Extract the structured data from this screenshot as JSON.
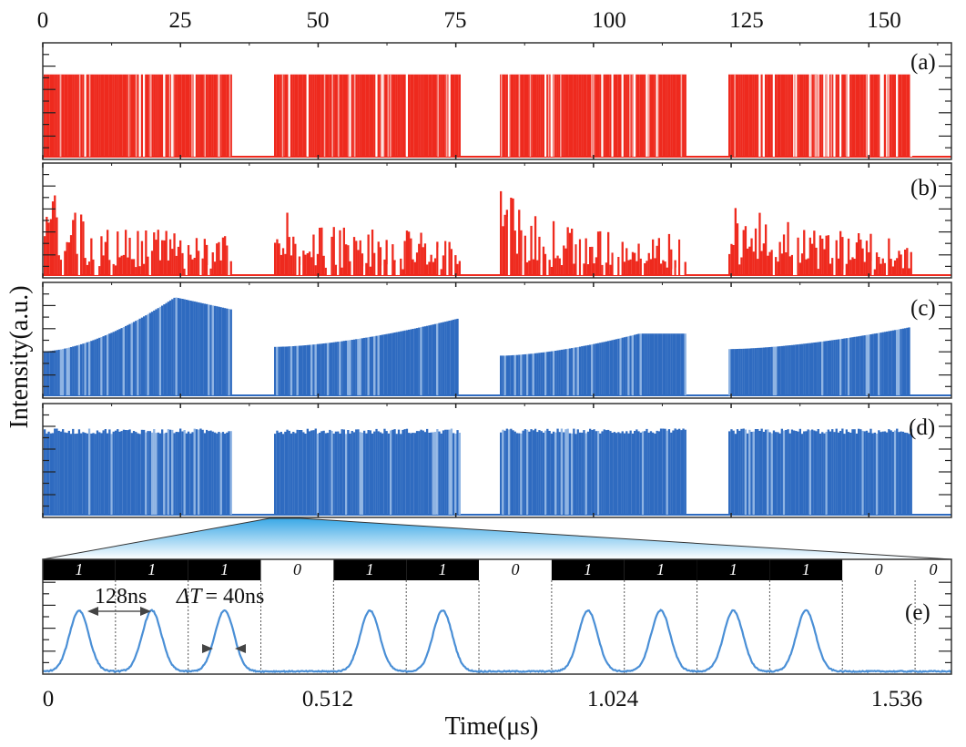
{
  "chart_data": [
    {
      "type": "bar",
      "panel": "(a)",
      "title": "",
      "xlabel": "",
      "ylabel": "Intensity(a.u.)",
      "x_axis_position": "top",
      "xlim": [
        0,
        165
      ],
      "xticks": [
        0,
        25,
        50,
        75,
        100,
        125,
        150
      ],
      "xtick_labels": [
        "0",
        "25",
        "50",
        "75",
        "100",
        "125",
        "150"
      ],
      "ylim": [
        0,
        1
      ],
      "color": "#ee2a1e",
      "bursts": [
        [
          0,
          34
        ],
        [
          42,
          75.5
        ],
        [
          83,
          116.5
        ],
        [
          124.5,
          157.5
        ]
      ],
      "envelope": "flat",
      "level": 0.74,
      "description": "dense red pulse trains of equal amplitude in four bursts"
    },
    {
      "type": "bar",
      "panel": "(b)",
      "xlim": [
        0,
        165
      ],
      "ylim": [
        0,
        1
      ],
      "color": "#ee2a1e",
      "bursts": [
        [
          0,
          34
        ],
        [
          42,
          75.5
        ],
        [
          83,
          116.5
        ],
        [
          124.5,
          157.5
        ]
      ],
      "envelope": "decaying",
      "start_level": 0.78,
      "end_level": 0.36,
      "description": "red pulse trains with fluctuating, decaying amplitude"
    },
    {
      "type": "bar",
      "panel": "(c)",
      "xlim": [
        0,
        165
      ],
      "ylim": [
        0,
        1
      ],
      "color": "#2f6bc0",
      "bursts": [
        [
          0,
          34
        ],
        [
          42,
          75.5
        ],
        [
          83,
          116.5
        ],
        [
          124.5,
          157.5
        ]
      ],
      "burst_envelopes": [
        {
          "start": 0.4,
          "peak_at": 0.7,
          "peak": 0.89,
          "end": 0.78
        },
        {
          "start": 0.44,
          "peak_at": 1.0,
          "peak": 0.7,
          "end": 0.7
        },
        {
          "start": 0.36,
          "peak_at": 0.75,
          "peak": 0.56,
          "end": 0.56
        },
        {
          "start": 0.42,
          "peak_at": 1.0,
          "peak": 0.62,
          "end": 0.62
        }
      ],
      "description": "blue pulse trains with rising amplitude envelope"
    },
    {
      "type": "bar",
      "panel": "(d)",
      "xlim": [
        0,
        165
      ],
      "ylim": [
        0,
        1
      ],
      "color": "#2f6bc0",
      "bursts": [
        [
          0,
          34
        ],
        [
          42,
          75.5
        ],
        [
          83,
          116.5
        ],
        [
          124.5,
          157.5
        ]
      ],
      "envelope": "flat",
      "level": 0.77,
      "description": "blue pulse trains with equalized, flat amplitude"
    },
    {
      "type": "line",
      "panel": "(e)",
      "xlabel": "Time(μs)",
      "xlim": [
        0,
        1.6
      ],
      "xticks": [
        0,
        0.512,
        1.024,
        1.536
      ],
      "xtick_labels": [
        "0",
        "0.512",
        "1.024",
        "1.536"
      ],
      "ylim": [
        0,
        1
      ],
      "color": "#4a8fd6",
      "bit_period_ns": 128,
      "bits": [
        "1",
        "1",
        "1",
        "0",
        "1",
        "1",
        "0",
        "1",
        "1",
        "1",
        "1",
        "0",
        "0"
      ],
      "pulse_peak": 0.62,
      "pulse_fwhm_ns": 40,
      "annotations": [
        "128ns",
        "ΔT = 40ns"
      ]
    }
  ],
  "labels": {
    "y_axis": "Intensity(a.u.)",
    "x_axis_bottom": "Time(μs)",
    "panels": [
      "(a)",
      "(b)",
      "(c)",
      "(d)",
      "(e)"
    ],
    "period_annotation": "128ns",
    "width_annotation_prefix": "ΔT",
    "width_annotation_value": "= 40ns"
  },
  "colors": {
    "red_trace": "#ee2a1e",
    "blue_trace": "#2f6bc0",
    "blue_trace_light": "#8fb4e3",
    "pulse_line": "#4a8fd6",
    "wedge_top": "#3aa8e6",
    "wedge_bottom": "#ffffff",
    "bit_one_bg": "#000000",
    "bit_zero_bg": "#ffffff"
  }
}
